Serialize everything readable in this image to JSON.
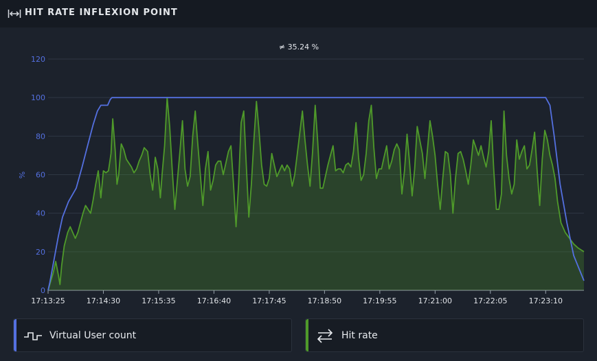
{
  "header": {
    "title": "HIT RATE INFLEXION POINT",
    "icon": "horizontal-expand-icon"
  },
  "annotation": "≠ 35.24 %",
  "legend": [
    {
      "label": "Virtual User count",
      "icon": "square-wave-icon",
      "color": "#5470e0"
    },
    {
      "label": "Hit rate",
      "icon": "swap-arrows-icon",
      "color": "#4f9a2a"
    }
  ],
  "chart_data": {
    "type": "line",
    "title": "",
    "xlabel": "",
    "ylabel": "%",
    "ylim": [
      0,
      120
    ],
    "yticks": [
      0,
      20,
      40,
      60,
      80,
      100,
      120
    ],
    "x_tick_labels": [
      "17:13:25",
      "17:14:30",
      "17:15:35",
      "17:16:40",
      "17:17:45",
      "17:18:50",
      "17:19:55",
      "17:21:00",
      "17:22:05",
      "17:23:10"
    ],
    "x_range": [
      "17:13:25",
      "17:23:55"
    ],
    "grid": "horizontal",
    "series": [
      {
        "name": "Virtual User count",
        "color": "#5470e0",
        "fill": false,
        "points": [
          [
            "17:13:25",
            0
          ],
          [
            "17:13:27",
            4
          ],
          [
            "17:13:32",
            16
          ],
          [
            "17:13:37",
            28
          ],
          [
            "17:13:42",
            38
          ],
          [
            "17:13:49",
            46
          ],
          [
            "17:13:58",
            53
          ],
          [
            "17:14:05",
            64
          ],
          [
            "17:14:12",
            76
          ],
          [
            "17:14:18",
            86
          ],
          [
            "17:14:23",
            93
          ],
          [
            "17:14:27",
            96
          ],
          [
            "17:14:35",
            96
          ],
          [
            "17:14:38",
            99
          ],
          [
            "17:14:40",
            100
          ],
          [
            "17:23:10",
            100
          ],
          [
            "17:23:15",
            96
          ],
          [
            "17:23:20",
            80
          ],
          [
            "17:23:27",
            55
          ],
          [
            "17:23:35",
            35
          ],
          [
            "17:23:43",
            18
          ],
          [
            "17:23:55",
            5
          ]
        ]
      },
      {
        "name": "Hit rate",
        "color": "#4f9a2a",
        "fill": true,
        "points": [
          [
            "17:13:25",
            0
          ],
          [
            "17:13:31",
            9
          ],
          [
            "17:13:34",
            15
          ],
          [
            "17:13:37",
            8
          ],
          [
            "17:13:39",
            3
          ],
          [
            "17:13:41",
            13
          ],
          [
            "17:13:44",
            23
          ],
          [
            "17:13:48",
            30
          ],
          [
            "17:13:51",
            33
          ],
          [
            "17:13:54",
            30
          ],
          [
            "17:13:57",
            27
          ],
          [
            "17:14:00",
            30
          ],
          [
            "17:14:03",
            35
          ],
          [
            "17:14:06",
            40
          ],
          [
            "17:14:09",
            44
          ],
          [
            "17:14:12",
            42
          ],
          [
            "17:14:15",
            40
          ],
          [
            "17:14:18",
            47
          ],
          [
            "17:14:21",
            55
          ],
          [
            "17:14:24",
            62
          ],
          [
            "17:14:27",
            48
          ],
          [
            "17:14:30",
            62
          ],
          [
            "17:14:33",
            61
          ],
          [
            "17:14:36",
            62
          ],
          [
            "17:14:39",
            71
          ],
          [
            "17:14:41",
            89
          ],
          [
            "17:14:44",
            72
          ],
          [
            "17:14:46",
            55
          ],
          [
            "17:14:48",
            60
          ],
          [
            "17:14:51",
            76
          ],
          [
            "17:14:54",
            73
          ],
          [
            "17:14:57",
            68
          ],
          [
            "17:15:00",
            66
          ],
          [
            "17:15:03",
            64
          ],
          [
            "17:15:06",
            61
          ],
          [
            "17:15:09",
            63
          ],
          [
            "17:15:12",
            67
          ],
          [
            "17:15:15",
            70
          ],
          [
            "17:15:18",
            74
          ],
          [
            "17:15:22",
            72
          ],
          [
            "17:15:25",
            60
          ],
          [
            "17:15:28",
            52
          ],
          [
            "17:15:31",
            69
          ],
          [
            "17:15:34",
            63
          ],
          [
            "17:15:37",
            48
          ],
          [
            "17:15:39",
            60
          ],
          [
            "17:15:42",
            75
          ],
          [
            "17:15:45",
            100
          ],
          [
            "17:15:48",
            85
          ],
          [
            "17:15:51",
            62
          ],
          [
            "17:15:54",
            42
          ],
          [
            "17:15:57",
            57
          ],
          [
            "17:16:00",
            72
          ],
          [
            "17:16:03",
            88
          ],
          [
            "17:16:06",
            63
          ],
          [
            "17:16:09",
            54
          ],
          [
            "17:16:12",
            59
          ],
          [
            "17:16:15",
            80
          ],
          [
            "17:16:18",
            93
          ],
          [
            "17:16:21",
            76
          ],
          [
            "17:16:24",
            60
          ],
          [
            "17:16:27",
            44
          ],
          [
            "17:16:30",
            63
          ],
          [
            "17:16:33",
            72
          ],
          [
            "17:16:36",
            52
          ],
          [
            "17:16:39",
            57
          ],
          [
            "17:16:42",
            65
          ],
          [
            "17:16:45",
            67
          ],
          [
            "17:16:48",
            67
          ],
          [
            "17:16:51",
            60
          ],
          [
            "17:16:54",
            66
          ],
          [
            "17:16:57",
            72
          ],
          [
            "17:17:00",
            75
          ],
          [
            "17:17:03",
            55
          ],
          [
            "17:17:06",
            33
          ],
          [
            "17:17:09",
            55
          ],
          [
            "17:17:12",
            87
          ],
          [
            "17:17:15",
            93
          ],
          [
            "17:17:18",
            65
          ],
          [
            "17:17:21",
            38
          ],
          [
            "17:17:24",
            55
          ],
          [
            "17:17:27",
            78
          ],
          [
            "17:17:30",
            98
          ],
          [
            "17:17:33",
            83
          ],
          [
            "17:17:36",
            65
          ],
          [
            "17:17:39",
            55
          ],
          [
            "17:17:42",
            54
          ],
          [
            "17:17:45",
            58
          ],
          [
            "17:17:48",
            71
          ],
          [
            "17:17:51",
            65
          ],
          [
            "17:17:54",
            59
          ],
          [
            "17:17:57",
            62
          ],
          [
            "17:18:00",
            65
          ],
          [
            "17:18:03",
            62
          ],
          [
            "17:18:06",
            65
          ],
          [
            "17:18:09",
            63
          ],
          [
            "17:18:12",
            54
          ],
          [
            "17:18:15",
            60
          ],
          [
            "17:18:18",
            71
          ],
          [
            "17:18:21",
            82
          ],
          [
            "17:18:24",
            93
          ],
          [
            "17:18:27",
            78
          ],
          [
            "17:18:30",
            65
          ],
          [
            "17:18:33",
            54
          ],
          [
            "17:18:36",
            72
          ],
          [
            "17:18:39",
            96
          ],
          [
            "17:18:42",
            77
          ],
          [
            "17:18:45",
            53
          ],
          [
            "17:18:48",
            53
          ],
          [
            "17:18:51",
            59
          ],
          [
            "17:18:54",
            65
          ],
          [
            "17:18:57",
            70
          ],
          [
            "17:19:00",
            75
          ],
          [
            "17:19:03",
            62
          ],
          [
            "17:19:06",
            63
          ],
          [
            "17:19:09",
            63
          ],
          [
            "17:19:12",
            61
          ],
          [
            "17:19:15",
            65
          ],
          [
            "17:19:18",
            66
          ],
          [
            "17:19:21",
            64
          ],
          [
            "17:19:24",
            72
          ],
          [
            "17:19:27",
            87
          ],
          [
            "17:19:30",
            69
          ],
          [
            "17:19:33",
            57
          ],
          [
            "17:19:36",
            60
          ],
          [
            "17:19:39",
            71
          ],
          [
            "17:19:42",
            88
          ],
          [
            "17:19:45",
            96
          ],
          [
            "17:19:48",
            74
          ],
          [
            "17:19:51",
            58
          ],
          [
            "17:19:54",
            63
          ],
          [
            "17:19:57",
            63
          ],
          [
            "17:20:00",
            69
          ],
          [
            "17:20:03",
            75
          ],
          [
            "17:20:06",
            63
          ],
          [
            "17:20:09",
            67
          ],
          [
            "17:20:12",
            73
          ],
          [
            "17:20:15",
            76
          ],
          [
            "17:20:18",
            73
          ],
          [
            "17:20:21",
            50
          ],
          [
            "17:20:24",
            62
          ],
          [
            "17:20:27",
            81
          ],
          [
            "17:20:30",
            66
          ],
          [
            "17:20:33",
            49
          ],
          [
            "17:20:36",
            63
          ],
          [
            "17:20:39",
            85
          ],
          [
            "17:20:42",
            78
          ],
          [
            "17:20:45",
            71
          ],
          [
            "17:20:48",
            58
          ],
          [
            "17:20:51",
            73
          ],
          [
            "17:20:54",
            88
          ],
          [
            "17:20:57",
            80
          ],
          [
            "17:21:00",
            70
          ],
          [
            "17:21:03",
            55
          ],
          [
            "17:21:06",
            42
          ],
          [
            "17:21:09",
            58
          ],
          [
            "17:21:12",
            72
          ],
          [
            "17:21:15",
            71
          ],
          [
            "17:21:18",
            60
          ],
          [
            "17:21:21",
            40
          ],
          [
            "17:21:24",
            58
          ],
          [
            "17:21:27",
            71
          ],
          [
            "17:21:30",
            72
          ],
          [
            "17:21:33",
            68
          ],
          [
            "17:21:36",
            62
          ],
          [
            "17:21:39",
            55
          ],
          [
            "17:21:42",
            65
          ],
          [
            "17:21:45",
            78
          ],
          [
            "17:21:48",
            74
          ],
          [
            "17:21:51",
            70
          ],
          [
            "17:21:54",
            75
          ],
          [
            "17:21:57",
            69
          ],
          [
            "17:22:00",
            64
          ],
          [
            "17:22:03",
            72
          ],
          [
            "17:22:06",
            88
          ],
          [
            "17:22:09",
            62
          ],
          [
            "17:22:12",
            42
          ],
          [
            "17:22:15",
            42
          ],
          [
            "17:22:18",
            50
          ],
          [
            "17:22:21",
            93
          ],
          [
            "17:22:24",
            70
          ],
          [
            "17:22:27",
            58
          ],
          [
            "17:22:30",
            50
          ],
          [
            "17:22:33",
            55
          ],
          [
            "17:22:36",
            78
          ],
          [
            "17:22:39",
            68
          ],
          [
            "17:22:42",
            72
          ],
          [
            "17:22:45",
            75
          ],
          [
            "17:22:48",
            63
          ],
          [
            "17:22:51",
            65
          ],
          [
            "17:22:54",
            73
          ],
          [
            "17:22:57",
            82
          ],
          [
            "17:23:00",
            62
          ],
          [
            "17:23:03",
            44
          ],
          [
            "17:23:06",
            68
          ],
          [
            "17:23:09",
            83
          ],
          [
            "17:23:12",
            78
          ],
          [
            "17:23:15",
            70
          ],
          [
            "17:23:18",
            65
          ],
          [
            "17:23:21",
            58
          ],
          [
            "17:23:24",
            46
          ],
          [
            "17:23:28",
            35
          ],
          [
            "17:23:33",
            30
          ],
          [
            "17:23:38",
            27
          ],
          [
            "17:23:43",
            24
          ],
          [
            "17:23:48",
            22
          ],
          [
            "17:23:55",
            20
          ]
        ]
      }
    ]
  }
}
